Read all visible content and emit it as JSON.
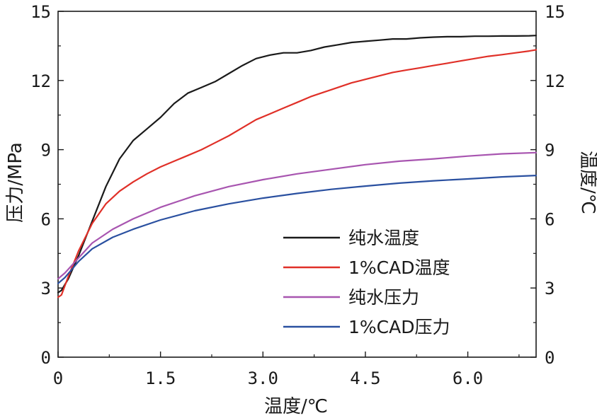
{
  "chart_data": {
    "type": "line",
    "xlabel": "温度/℃",
    "ylabel_left": "压力/MPa",
    "ylabel_right": "温度/℃",
    "xlim": [
      0,
      7
    ],
    "ylim_left": [
      0,
      15
    ],
    "ylim_right": [
      0,
      15
    ],
    "x_ticks": [
      "0",
      "1.5",
      "3.0",
      "4.5",
      "6.0"
    ],
    "x_tick_values": [
      0,
      1.5,
      3.0,
      4.5,
      6.0
    ],
    "y_ticks_left": [
      "0",
      "3",
      "6",
      "9",
      "12",
      "15"
    ],
    "y_ticks_right": [
      "0",
      "3",
      "6",
      "9",
      "12",
      "15"
    ],
    "y_tick_values": [
      0,
      3,
      6,
      9,
      12,
      15
    ],
    "grid": false,
    "legend_position": "lower-right",
    "series": [
      {
        "name": "纯水温度",
        "color": "#1a1a1a",
        "x": [
          0,
          0.05,
          0.15,
          0.3,
          0.5,
          0.7,
          0.9,
          1.1,
          1.3,
          1.5,
          1.7,
          1.9,
          2.1,
          2.3,
          2.5,
          2.7,
          2.9,
          3.1,
          3.3,
          3.5,
          3.7,
          3.9,
          4.1,
          4.3,
          4.5,
          4.7,
          4.9,
          5.1,
          5.3,
          5.5,
          5.7,
          5.9,
          6.1,
          6.3,
          6.5,
          6.7,
          6.9,
          7.0
        ],
        "y": [
          2.8,
          2.9,
          3.4,
          4.4,
          5.9,
          7.4,
          8.6,
          9.4,
          9.9,
          10.4,
          11.0,
          11.45,
          11.7,
          11.95,
          12.3,
          12.65,
          12.95,
          13.1,
          13.2,
          13.2,
          13.3,
          13.45,
          13.55,
          13.65,
          13.7,
          13.75,
          13.8,
          13.8,
          13.85,
          13.88,
          13.9,
          13.9,
          13.92,
          13.92,
          13.93,
          13.93,
          13.94,
          13.95
        ]
      },
      {
        "name": "1%CAD温度",
        "color": "#e03028",
        "x": [
          0,
          0.05,
          0.15,
          0.3,
          0.5,
          0.7,
          0.9,
          1.1,
          1.3,
          1.5,
          1.7,
          1.9,
          2.1,
          2.3,
          2.5,
          2.7,
          2.9,
          3.1,
          3.3,
          3.5,
          3.7,
          3.9,
          4.1,
          4.3,
          4.5,
          4.7,
          4.9,
          5.1,
          5.3,
          5.5,
          5.7,
          5.9,
          6.1,
          6.3,
          6.5,
          6.7,
          6.9,
          7.0
        ],
        "y": [
          2.6,
          2.7,
          3.5,
          4.6,
          5.8,
          6.65,
          7.2,
          7.6,
          7.95,
          8.25,
          8.5,
          8.75,
          9.0,
          9.3,
          9.6,
          9.95,
          10.3,
          10.55,
          10.8,
          11.05,
          11.3,
          11.5,
          11.7,
          11.9,
          12.05,
          12.2,
          12.35,
          12.45,
          12.55,
          12.65,
          12.75,
          12.85,
          12.95,
          13.05,
          13.12,
          13.2,
          13.28,
          13.33
        ]
      },
      {
        "name": "纯水压力",
        "color": "#a855b0",
        "x": [
          0,
          0.1,
          0.3,
          0.5,
          0.8,
          1.1,
          1.5,
          2.0,
          2.5,
          3.0,
          3.5,
          4.0,
          4.5,
          5.0,
          5.5,
          6.0,
          6.5,
          7.0
        ],
        "y": [
          3.4,
          3.65,
          4.3,
          4.95,
          5.55,
          6.0,
          6.5,
          7.0,
          7.4,
          7.7,
          7.95,
          8.15,
          8.35,
          8.5,
          8.6,
          8.72,
          8.82,
          8.87
        ]
      },
      {
        "name": "1%CAD压力",
        "color": "#2a50a0",
        "x": [
          0,
          0.1,
          0.3,
          0.5,
          0.8,
          1.1,
          1.5,
          2.0,
          2.5,
          3.0,
          3.5,
          4.0,
          4.5,
          5.0,
          5.5,
          6.0,
          6.5,
          7.0
        ],
        "y": [
          3.2,
          3.45,
          4.15,
          4.7,
          5.2,
          5.55,
          5.95,
          6.35,
          6.65,
          6.9,
          7.1,
          7.28,
          7.42,
          7.55,
          7.65,
          7.73,
          7.82,
          7.88
        ]
      }
    ]
  }
}
